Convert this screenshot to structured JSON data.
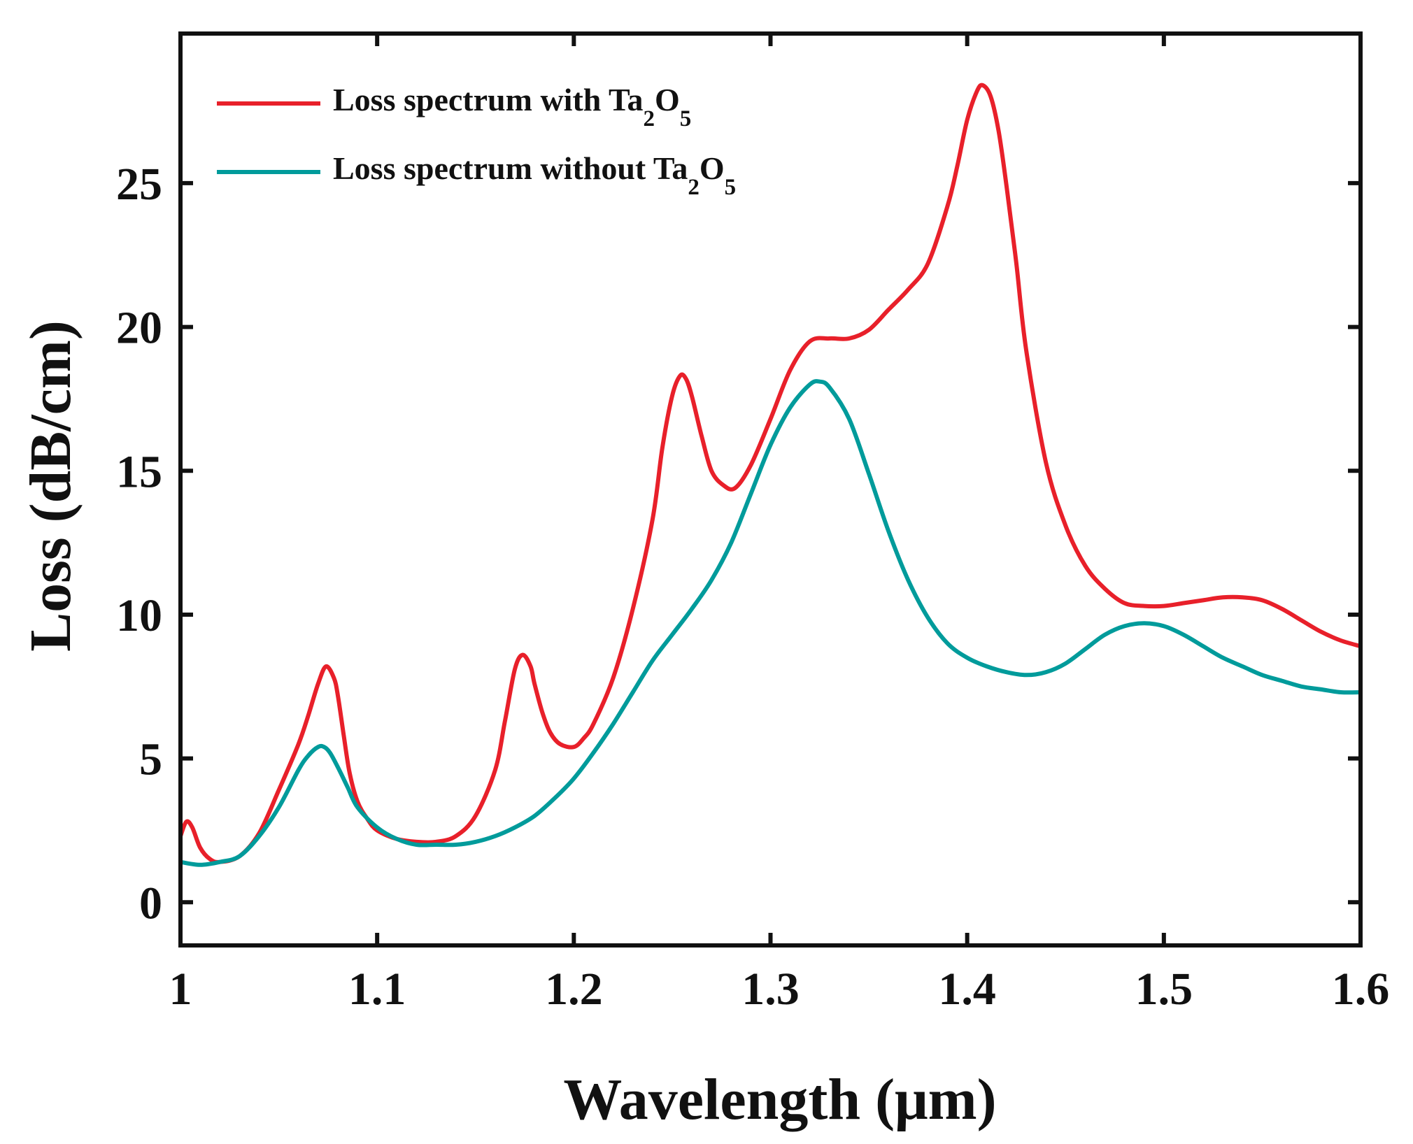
{
  "chart_data": {
    "type": "line",
    "title": "",
    "xlabel": "Wavelength (μm)",
    "ylabel": "Loss (dB/cm)",
    "xlim": [
      1.0,
      1.6
    ],
    "ylim": [
      -1.5,
      30.2
    ],
    "xticks": [
      1.0,
      1.1,
      1.2,
      1.3,
      1.4,
      1.5,
      1.6
    ],
    "xtick_labels": [
      "1",
      "1.1",
      "1.2",
      "1.3",
      "1.4",
      "1.5",
      "1.6"
    ],
    "yticks": [
      0,
      5,
      10,
      15,
      20,
      25
    ],
    "ytick_labels": [
      "0",
      "5",
      "10",
      "15",
      "20",
      "25"
    ],
    "grid": false,
    "legend_position": "top-left",
    "series": [
      {
        "name": "Loss spectrum with Ta2O5",
        "legend": {
          "prefix": "Loss spectrum with Ta",
          "sub1": "2",
          "mid": "O",
          "sub2": "5"
        },
        "color": "#e8202a",
        "x": [
          1.0,
          1.003,
          1.006,
          1.01,
          1.015,
          1.02,
          1.03,
          1.04,
          1.05,
          1.06,
          1.065,
          1.07,
          1.074,
          1.078,
          1.08,
          1.083,
          1.086,
          1.09,
          1.095,
          1.1,
          1.11,
          1.12,
          1.13,
          1.14,
          1.15,
          1.16,
          1.165,
          1.17,
          1.174,
          1.178,
          1.18,
          1.184,
          1.188,
          1.193,
          1.2,
          1.205,
          1.21,
          1.22,
          1.23,
          1.24,
          1.245,
          1.25,
          1.254,
          1.257,
          1.26,
          1.265,
          1.27,
          1.276,
          1.282,
          1.29,
          1.3,
          1.31,
          1.32,
          1.33,
          1.34,
          1.35,
          1.36,
          1.37,
          1.38,
          1.39,
          1.395,
          1.4,
          1.405,
          1.408,
          1.412,
          1.416,
          1.42,
          1.425,
          1.43,
          1.44,
          1.45,
          1.46,
          1.47,
          1.48,
          1.49,
          1.5,
          1.51,
          1.52,
          1.53,
          1.54,
          1.55,
          1.56,
          1.57,
          1.58,
          1.59,
          1.6
        ],
        "y": [
          2.3,
          2.8,
          2.6,
          1.9,
          1.5,
          1.4,
          1.6,
          2.4,
          3.9,
          5.5,
          6.5,
          7.6,
          8.2,
          7.8,
          7.2,
          5.8,
          4.5,
          3.5,
          2.9,
          2.5,
          2.2,
          2.1,
          2.1,
          2.3,
          3.0,
          4.6,
          6.3,
          8.1,
          8.6,
          8.2,
          7.6,
          6.6,
          5.9,
          5.5,
          5.4,
          5.7,
          6.2,
          7.8,
          10.2,
          13.3,
          15.8,
          17.6,
          18.3,
          18.2,
          17.6,
          16.2,
          15.0,
          14.5,
          14.4,
          15.2,
          16.8,
          18.5,
          19.5,
          19.6,
          19.6,
          19.9,
          20.6,
          21.3,
          22.2,
          24.2,
          25.6,
          27.2,
          28.2,
          28.4,
          28.0,
          26.8,
          24.9,
          22.2,
          19.2,
          15.3,
          13.1,
          11.7,
          10.9,
          10.4,
          10.3,
          10.3,
          10.4,
          10.5,
          10.6,
          10.6,
          10.5,
          10.2,
          9.8,
          9.4,
          9.1,
          8.9
        ]
      },
      {
        "name": "Loss spectrum without Ta2O5",
        "legend": {
          "prefix": "Loss spectrum without Ta",
          "sub1": "2",
          "mid": "O",
          "sub2": "5"
        },
        "color": "#009b9b",
        "x": [
          1.0,
          1.01,
          1.02,
          1.03,
          1.04,
          1.05,
          1.06,
          1.065,
          1.07,
          1.073,
          1.076,
          1.08,
          1.085,
          1.09,
          1.1,
          1.11,
          1.12,
          1.13,
          1.14,
          1.15,
          1.16,
          1.17,
          1.18,
          1.19,
          1.2,
          1.21,
          1.22,
          1.23,
          1.24,
          1.25,
          1.26,
          1.27,
          1.28,
          1.29,
          1.3,
          1.31,
          1.32,
          1.325,
          1.33,
          1.34,
          1.35,
          1.36,
          1.37,
          1.38,
          1.39,
          1.4,
          1.41,
          1.42,
          1.43,
          1.44,
          1.45,
          1.46,
          1.47,
          1.48,
          1.49,
          1.5,
          1.51,
          1.52,
          1.53,
          1.54,
          1.55,
          1.56,
          1.57,
          1.58,
          1.59,
          1.6
        ],
        "y": [
          1.4,
          1.3,
          1.4,
          1.6,
          2.3,
          3.3,
          4.6,
          5.1,
          5.4,
          5.4,
          5.2,
          4.7,
          4.0,
          3.3,
          2.6,
          2.2,
          2.0,
          2.0,
          2.0,
          2.1,
          2.3,
          2.6,
          3.0,
          3.6,
          4.3,
          5.2,
          6.2,
          7.3,
          8.4,
          9.3,
          10.2,
          11.2,
          12.5,
          14.2,
          15.9,
          17.2,
          18.0,
          18.1,
          17.9,
          16.8,
          14.9,
          12.9,
          11.2,
          9.9,
          9.0,
          8.5,
          8.2,
          8.0,
          7.9,
          8.0,
          8.3,
          8.8,
          9.3,
          9.6,
          9.7,
          9.6,
          9.3,
          8.9,
          8.5,
          8.2,
          7.9,
          7.7,
          7.5,
          7.4,
          7.3,
          7.3
        ]
      }
    ]
  }
}
